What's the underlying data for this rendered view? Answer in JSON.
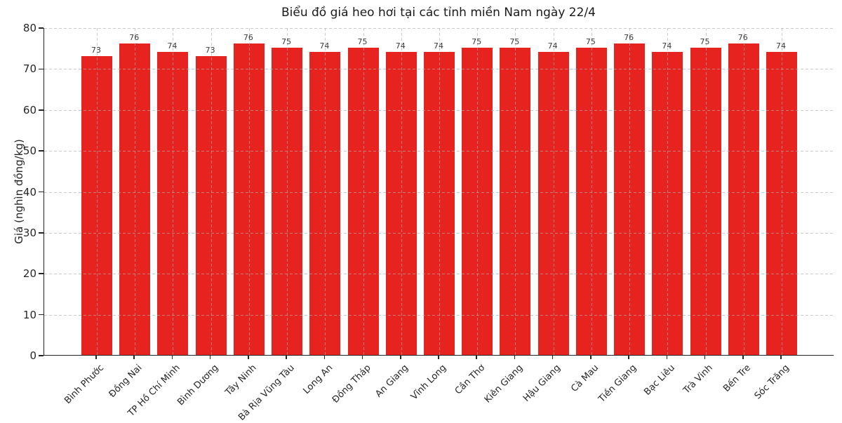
{
  "chart_data": {
    "type": "bar",
    "title": "Biểu đồ giá heo hơi tại các tỉnh miền Nam ngày 22/4",
    "xlabel": "",
    "ylabel": "Giá (nghìn đồng/kg)",
    "categories": [
      "Bình Phước",
      "Đồng Nai",
      "TP Hồ Chí Minh",
      "Bình Dương",
      "Tây Ninh",
      "Bà Rịa Vũng Tàu",
      "Long An",
      "Đồng Tháp",
      "An Giang",
      "Vĩnh Long",
      "Cần Thơ",
      "Kiên Giang",
      "Hậu Giang",
      "Cà Mau",
      "Tiền Giang",
      "Bạc Liêu",
      "Trà Vinh",
      "Bến Tre",
      "Sóc Trăng"
    ],
    "values": [
      73,
      76,
      74,
      73,
      76,
      75,
      74,
      75,
      74,
      74,
      75,
      75,
      74,
      75,
      76,
      74,
      75,
      76,
      74
    ],
    "value_labels": [
      "73",
      "76",
      "74",
      "73",
      "76",
      "75",
      "74",
      "75",
      "74",
      "74",
      "75",
      "75",
      "74",
      "75",
      "76",
      "74",
      "75",
      "76",
      "74"
    ],
    "ylim": [
      0,
      80
    ],
    "yticks": [
      0,
      10,
      20,
      30,
      40,
      50,
      60,
      70,
      80
    ],
    "grid": "dashed, drawn over bars",
    "legend": "none",
    "bar_color": "#e6231e",
    "axis_color": "#262626",
    "grid_color": "#b0b0b0",
    "background_color": "#ffffff"
  }
}
